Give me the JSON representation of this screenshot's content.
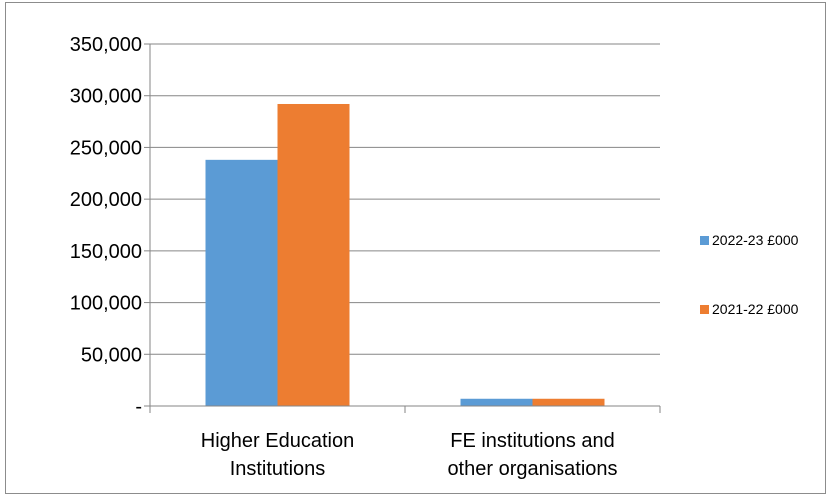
{
  "chart_data": {
    "type": "bar",
    "title": "",
    "xlabel": "",
    "ylabel": "",
    "categories": [
      "Higher Education Institutions",
      "FE institutions and other organisations"
    ],
    "category_lines": [
      [
        "Higher Education",
        "Institutions"
      ],
      [
        "FE institutions and",
        "other organisations"
      ]
    ],
    "series": [
      {
        "name": "2022-23 £000",
        "values": [
          238000,
          7000
        ],
        "color": "#5b9bd5"
      },
      {
        "name": "2021-22 £000",
        "values": [
          292000,
          7000
        ],
        "color": "#ed7d31"
      }
    ],
    "ylim": [
      0,
      350000
    ],
    "yticks": [
      0,
      50000,
      100000,
      150000,
      200000,
      250000,
      300000,
      350000
    ],
    "ytick_labels": [
      "-",
      "50,000",
      "100,000",
      "150,000",
      "200,000",
      "250,000",
      "300,000",
      "350,000"
    ],
    "grid": true,
    "legend_position": "right"
  }
}
